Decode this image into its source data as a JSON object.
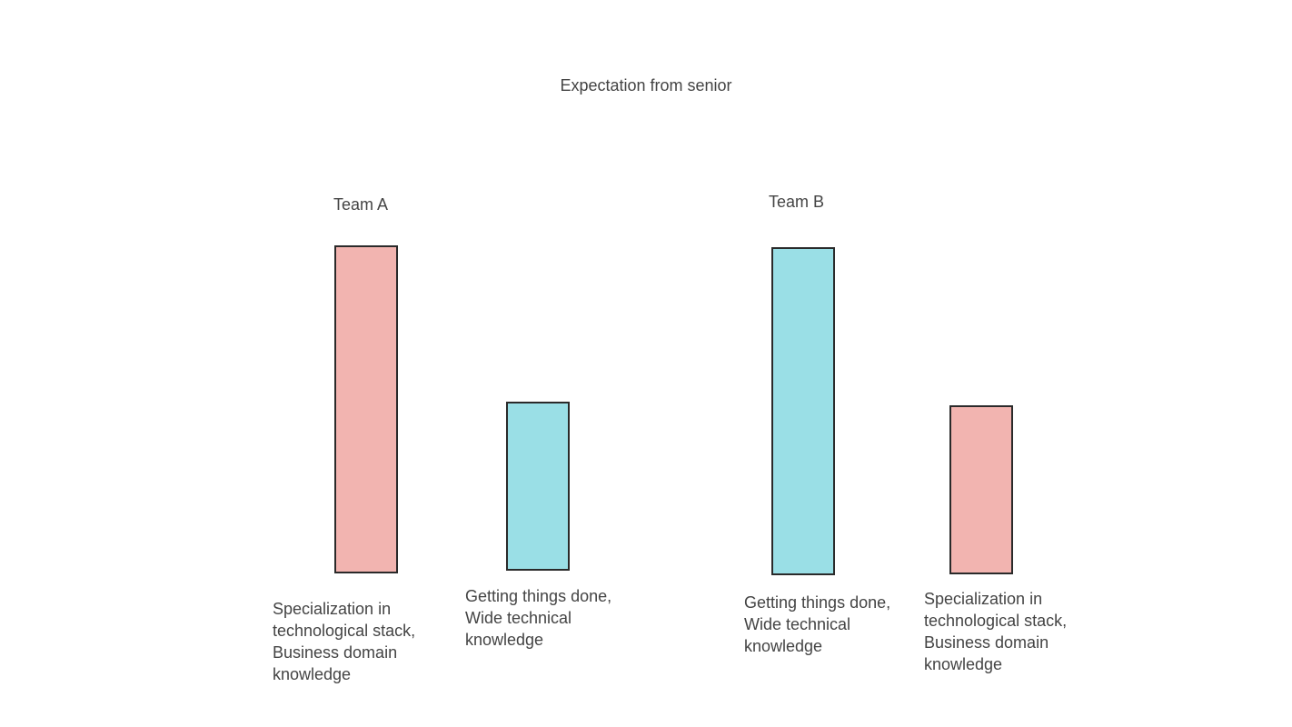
{
  "title": "Expectation from senior",
  "colors": {
    "specialization": "#f2b4b0",
    "getting_things_done": "#9adfe6",
    "border": "#2a2a2a",
    "text": "#444444"
  },
  "teams": [
    {
      "name": "Team A",
      "bars": [
        {
          "category": "specialization",
          "relative_height": 1.0,
          "label_lines": [
            "Specialization in",
            "technological stack,",
            "Business domain",
            "knowledge"
          ]
        },
        {
          "category": "getting_things_done",
          "relative_height": 0.51,
          "label_lines": [
            "Getting things done,",
            "Wide technical",
            "knowledge"
          ]
        }
      ]
    },
    {
      "name": "Team B",
      "bars": [
        {
          "category": "getting_things_done",
          "relative_height": 1.0,
          "label_lines": [
            "Getting things done,",
            "Wide technical",
            "knowledge"
          ]
        },
        {
          "category": "specialization",
          "relative_height": 0.51,
          "label_lines": [
            "Specialization in",
            "technological stack,",
            "Business domain",
            "knowledge"
          ]
        }
      ]
    }
  ]
}
